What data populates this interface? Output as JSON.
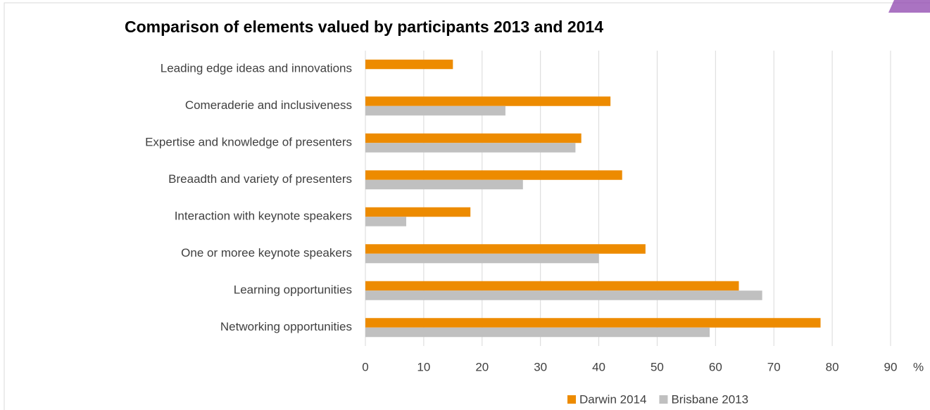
{
  "chart_data": {
    "type": "hbar",
    "title": "Comparison of elements valued by participants 2013 and 2014",
    "x_label": "%",
    "categories": [
      "Leading edge ideas and innovations",
      "Comeraderie and inclusiveness",
      "Expertise and knowledge of presenters",
      "Breaadth and variety of presenters",
      "Interaction with keynote speakers",
      "One or moree keynote speakers",
      "Learning opportunities",
      "Networking opportunities"
    ],
    "series": [
      {
        "name": "Darwin 2014",
        "color": "#ed8b00",
        "values": [
          15,
          42,
          37,
          44,
          18,
          48,
          64,
          78
        ]
      },
      {
        "name": "Brisbane 2013",
        "color": "#c0c0c0",
        "values": [
          null,
          24,
          36,
          27,
          7,
          40,
          68,
          59
        ]
      }
    ],
    "xlim": [
      0,
      90
    ],
    "xticks": [
      0,
      10,
      20,
      30,
      40,
      50,
      60,
      70,
      80,
      90
    ],
    "grid": true,
    "legend": "bottom"
  }
}
